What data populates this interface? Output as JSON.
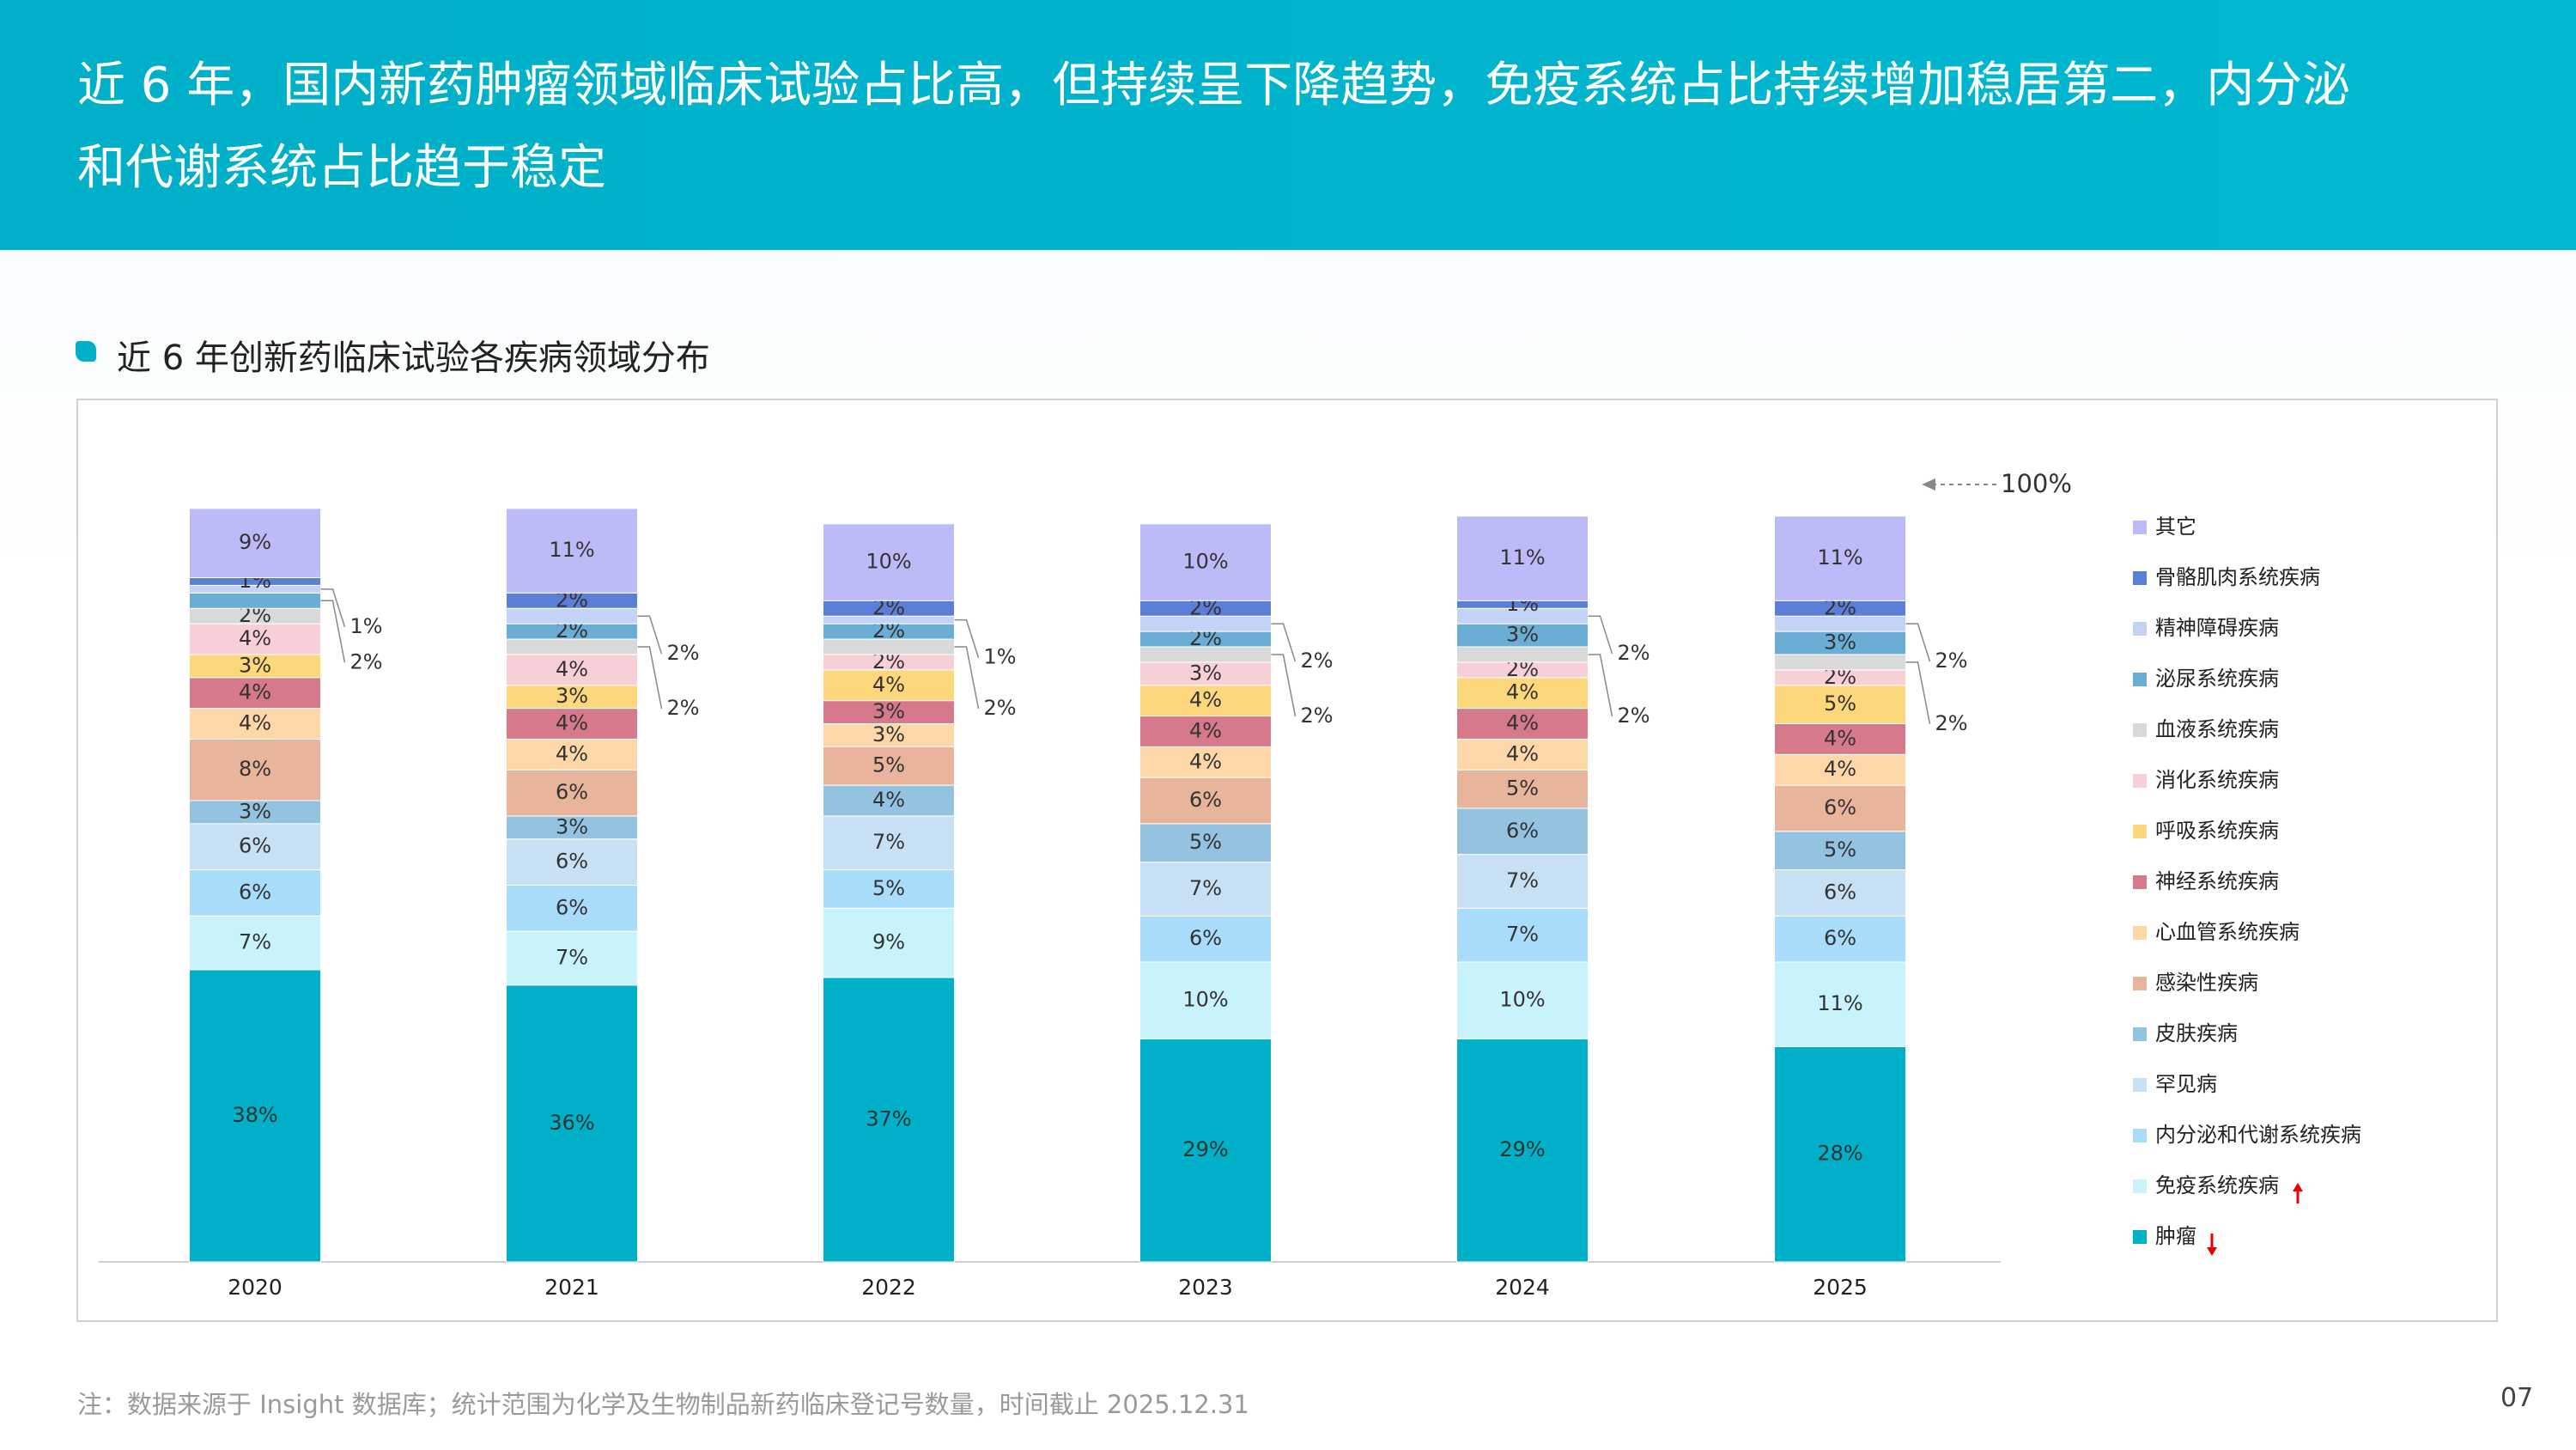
{
  "header": {
    "title": "近 6 年，国内新药肿瘤领域临床试验占比高，但持续呈下降趋势，免疫系统占比持续增加稳居第二，内分泌和代谢系统占比趋于稳定"
  },
  "footer": {
    "note": "注：数据来源于 Insight 数据库；统计范围为化学及生物制品新药临床登记号数量，时间截止 2025.12.31",
    "page_number": "07"
  },
  "chart_data": {
    "type": "stacked_bar",
    "title": "近 6 年创新药临床试验各疾病领域分布",
    "annotation": "100%",
    "categories": [
      "2020",
      "2021",
      "2022",
      "2023",
      "2024",
      "2025"
    ],
    "ylim": [
      0,
      100
    ],
    "series": [
      {
        "name": "肿瘤",
        "color": "#00b0c8",
        "values": [
          38,
          36,
          37,
          29,
          29,
          28
        ],
        "value_labels": [
          "38%",
          "36%",
          "37%",
          "29%",
          "29%",
          "28%"
        ]
      },
      {
        "name": "免疫系统疾病",
        "color": "#c8f3fa",
        "values": [
          7,
          7,
          9,
          10,
          10,
          11
        ],
        "value_labels": [
          "7%",
          "7%",
          "9%",
          "10%",
          "10%",
          "11%"
        ]
      },
      {
        "name": "内分泌和代谢系统疾病",
        "color": "#a9dcfb",
        "values": [
          6,
          6,
          5,
          6,
          7,
          6
        ],
        "value_labels": [
          "6%",
          "6%",
          "5%",
          "6%",
          "7%",
          "6%"
        ]
      },
      {
        "name": "罕见病",
        "color": "#c7e0f3",
        "values": [
          6,
          6,
          7,
          7,
          7,
          6
        ],
        "value_labels": [
          "6%",
          "6%",
          "7%",
          "7%",
          "7%",
          "6%"
        ]
      },
      {
        "name": "皮肤疾病",
        "color": "#93c3e0",
        "values": [
          3,
          3,
          4,
          5,
          6,
          5
        ],
        "value_labels": [
          "3%",
          "3%",
          "4%",
          "5%",
          "6%",
          "5%"
        ]
      },
      {
        "name": "感染性疾病",
        "color": "#e8b49b",
        "values": [
          8,
          6,
          5,
          6,
          5,
          6
        ],
        "value_labels": [
          "8%",
          "6%",
          "5%",
          "6%",
          "5%",
          "6%"
        ]
      },
      {
        "name": "心血管系统疾病",
        "color": "#fdd7a8",
        "values": [
          4,
          4,
          3,
          4,
          4,
          4
        ],
        "value_labels": [
          "4%",
          "4%",
          "3%",
          "4%",
          "4%",
          "4%"
        ]
      },
      {
        "name": "神经系统疾病",
        "color": "#d6798b",
        "values": [
          4,
          4,
          3,
          4,
          4,
          4
        ],
        "value_labels": [
          "4%",
          "4%",
          "3%",
          "4%",
          "4%",
          "4%"
        ]
      },
      {
        "name": "呼吸系统疾病",
        "color": "#fdd77b",
        "values": [
          3,
          3,
          4,
          4,
          4,
          5
        ],
        "value_labels": [
          "3%",
          "3%",
          "4%",
          "4%",
          "4%",
          "5%"
        ]
      },
      {
        "name": "消化系统疾病",
        "color": "#f9cfd7",
        "values": [
          4,
          4,
          2,
          3,
          2,
          2
        ],
        "value_labels": [
          "4%",
          "4%",
          "2%",
          "3%",
          "2%",
          "2%"
        ]
      },
      {
        "name": "血液系统疾病",
        "color": "#d9d9d9",
        "values": [
          2,
          2,
          2,
          2,
          2,
          2
        ],
        "value_labels": [
          "2%",
          "2%",
          "2%",
          "2%",
          "2%",
          "2%"
        ]
      },
      {
        "name": "泌尿系统疾病",
        "color": "#6aadd5",
        "values": [
          2,
          2,
          2,
          2,
          3,
          3
        ],
        "value_labels": [
          "2%",
          "2%",
          "2%",
          "2%",
          "3%",
          "3%"
        ]
      },
      {
        "name": "精神障碍疾病",
        "color": "#c3d3f5",
        "values": [
          1,
          2,
          1,
          2,
          2,
          2
        ],
        "value_labels": [
          "1%",
          "2%",
          "1%",
          "2%",
          "2%",
          "2%"
        ]
      },
      {
        "name": "骨骼肌肉系统疾病",
        "color": "#5b7ed6",
        "values": [
          1,
          2,
          2,
          2,
          1,
          2
        ],
        "value_labels": [
          "1%",
          "2%",
          "2%",
          "2%",
          "1%",
          "2%"
        ]
      },
      {
        "name": "其它",
        "color": "#bdbaf8",
        "values": [
          9,
          11,
          10,
          10,
          11,
          11
        ],
        "value_labels": [
          "9%",
          "11%",
          "10%",
          "10%",
          "11%",
          "11%"
        ]
      }
    ]
  }
}
